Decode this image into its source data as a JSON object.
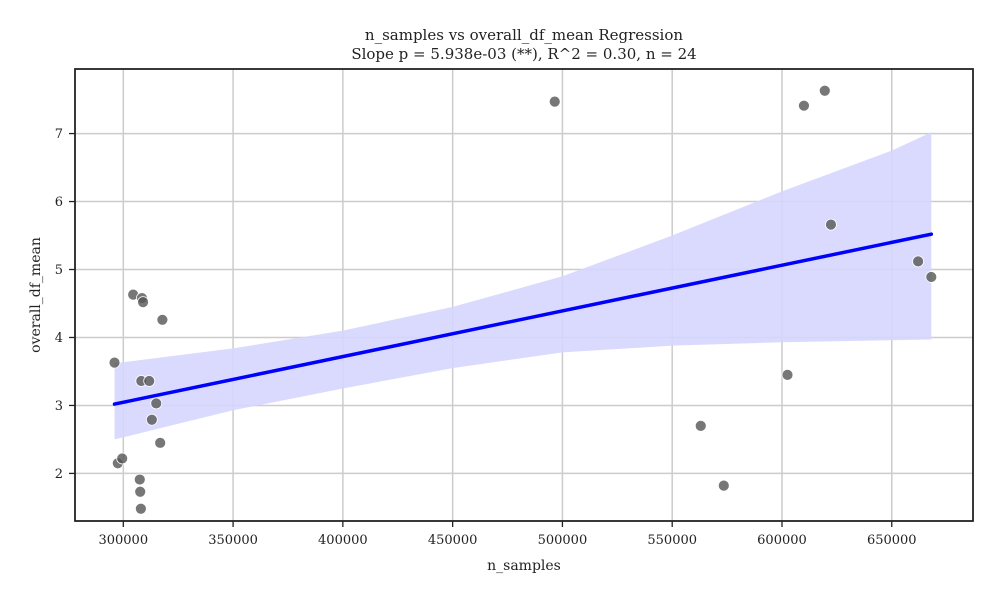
{
  "chart_data": {
    "type": "scatter",
    "title": "n_samples vs overall_df_mean Regression",
    "subtitle": "Slope p = 5.938e-03 (**), R^2 = 0.30, n = 24",
    "xlabel": "n_samples",
    "ylabel": "overall_df_mean",
    "xlim": [
      278000,
      687000
    ],
    "ylim": [
      1.3,
      7.95
    ],
    "xticks": [
      300000,
      350000,
      400000,
      450000,
      500000,
      550000,
      600000,
      650000
    ],
    "yticks": [
      2,
      3,
      4,
      5,
      6,
      7
    ],
    "grid": true,
    "colors": {
      "points": "#555555",
      "regression_line": "#0000ff",
      "confidence_band": "#d6d6ff",
      "grid": "#cccccc",
      "axes": "#222222"
    },
    "points": [
      {
        "x": 296000,
        "y": 3.63
      },
      {
        "x": 297500,
        "y": 2.15
      },
      {
        "x": 299500,
        "y": 2.22
      },
      {
        "x": 304500,
        "y": 4.63
      },
      {
        "x": 307500,
        "y": 1.91
      },
      {
        "x": 307700,
        "y": 1.73
      },
      {
        "x": 308000,
        "y": 1.48
      },
      {
        "x": 308200,
        "y": 3.36
      },
      {
        "x": 308500,
        "y": 4.58
      },
      {
        "x": 309000,
        "y": 4.52
      },
      {
        "x": 311800,
        "y": 3.36
      },
      {
        "x": 313000,
        "y": 2.79
      },
      {
        "x": 315000,
        "y": 3.03
      },
      {
        "x": 316800,
        "y": 2.45
      },
      {
        "x": 317800,
        "y": 4.26
      },
      {
        "x": 496500,
        "y": 7.47
      },
      {
        "x": 563000,
        "y": 2.7
      },
      {
        "x": 573500,
        "y": 1.82
      },
      {
        "x": 602500,
        "y": 3.45
      },
      {
        "x": 610000,
        "y": 7.41
      },
      {
        "x": 619500,
        "y": 7.63
      },
      {
        "x": 622300,
        "y": 5.66
      },
      {
        "x": 662000,
        "y": 5.12
      },
      {
        "x": 668000,
        "y": 4.89
      }
    ],
    "regression_line": {
      "x": [
        296000,
        668000
      ],
      "y": [
        3.02,
        5.52
      ]
    },
    "confidence_band": {
      "x": [
        296000,
        350000,
        400000,
        450000,
        500000,
        550000,
        600000,
        650000,
        668000
      ],
      "lower": [
        2.5,
        2.93,
        3.25,
        3.55,
        3.78,
        3.88,
        3.93,
        3.96,
        3.97
      ],
      "upper": [
        3.62,
        3.84,
        4.1,
        4.45,
        4.9,
        5.5,
        6.15,
        6.75,
        7.02
      ]
    }
  }
}
